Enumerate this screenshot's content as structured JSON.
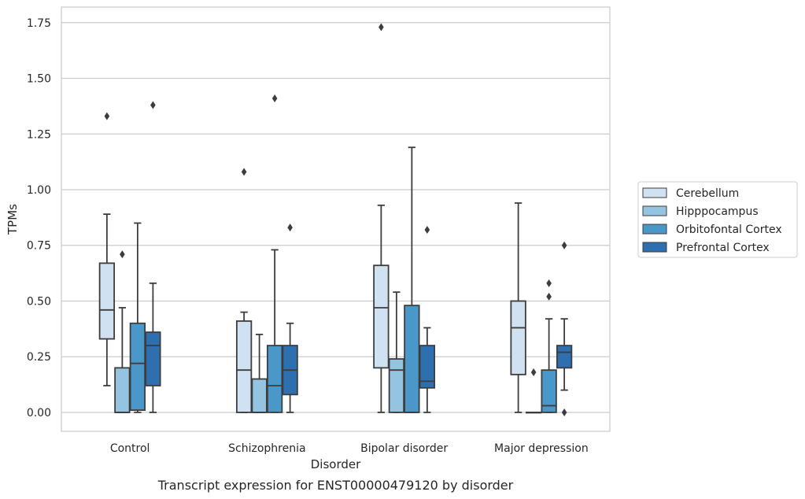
{
  "chart_data": {
    "type": "box",
    "caption": "Transcript expression for ENST00000479120 by disorder",
    "xlabel": "Disorder",
    "ylabel": "TPMs",
    "ylim": [
      -0.085,
      1.82
    ],
    "yticks": [
      "0.00",
      "0.25",
      "0.50",
      "0.75",
      "1.00",
      "1.25",
      "1.50",
      "1.75"
    ],
    "grid": true,
    "legend_position": "right",
    "categories": [
      "Control",
      "Schizophrenia",
      "Bipolar disorder",
      "Major depression"
    ],
    "series": [
      {
        "name": "Cerebellum",
        "color": "#d0e1f2",
        "boxes": [
          {
            "whislo": 0.12,
            "q1": 0.33,
            "med": 0.46,
            "q3": 0.67,
            "whishi": 0.89,
            "fliers": [
              1.33
            ]
          },
          {
            "whislo": 0.0,
            "q1": 0.0,
            "med": 0.19,
            "q3": 0.41,
            "whishi": 0.45,
            "fliers": [
              1.08
            ]
          },
          {
            "whislo": 0.0,
            "q1": 0.2,
            "med": 0.47,
            "q3": 0.66,
            "whishi": 0.93,
            "fliers": [
              1.73
            ]
          },
          {
            "whislo": 0.0,
            "q1": 0.17,
            "med": 0.38,
            "q3": 0.5,
            "whishi": 0.94,
            "fliers": []
          }
        ]
      },
      {
        "name": "Hipppocampus",
        "color": "#94c4df",
        "boxes": [
          {
            "whislo": 0.0,
            "q1": 0.0,
            "med": 0.0,
            "q3": 0.2,
            "whishi": 0.47,
            "fliers": [
              0.71
            ]
          },
          {
            "whislo": 0.0,
            "q1": 0.0,
            "med": 0.0,
            "q3": 0.15,
            "whishi": 0.35,
            "fliers": []
          },
          {
            "whislo": 0.0,
            "q1": 0.0,
            "med": 0.19,
            "q3": 0.24,
            "whishi": 0.54,
            "fliers": []
          },
          {
            "whislo": 0.0,
            "q1": 0.0,
            "med": 0.0,
            "q3": 0.0,
            "whishi": 0.0,
            "fliers": [
              0.18
            ]
          }
        ]
      },
      {
        "name": "Orbitofontal Cortex",
        "color": "#4a98c9",
        "boxes": [
          {
            "whislo": 0.0,
            "q1": 0.01,
            "med": 0.22,
            "q3": 0.4,
            "whishi": 0.85,
            "fliers": []
          },
          {
            "whislo": 0.0,
            "q1": 0.0,
            "med": 0.12,
            "q3": 0.3,
            "whishi": 0.73,
            "fliers": [
              1.41
            ]
          },
          {
            "whislo": 0.0,
            "q1": 0.0,
            "med": 0.0,
            "q3": 0.48,
            "whishi": 1.19,
            "fliers": []
          },
          {
            "whislo": 0.0,
            "q1": 0.0,
            "med": 0.03,
            "q3": 0.19,
            "whishi": 0.42,
            "fliers": [
              0.52,
              0.58
            ]
          }
        ]
      },
      {
        "name": "Prefrontal Cortex",
        "color": "#2e6fb0",
        "boxes": [
          {
            "whislo": 0.0,
            "q1": 0.12,
            "med": 0.3,
            "q3": 0.36,
            "whishi": 0.58,
            "fliers": [
              1.38
            ]
          },
          {
            "whislo": 0.0,
            "q1": 0.08,
            "med": 0.19,
            "q3": 0.3,
            "whishi": 0.4,
            "fliers": [
              0.83
            ]
          },
          {
            "whislo": 0.0,
            "q1": 0.11,
            "med": 0.14,
            "q3": 0.3,
            "whishi": 0.38,
            "fliers": [
              0.82
            ]
          },
          {
            "whislo": 0.1,
            "q1": 0.2,
            "med": 0.27,
            "q3": 0.3,
            "whishi": 0.42,
            "fliers": [
              0.0,
              0.75
            ]
          }
        ]
      }
    ]
  }
}
